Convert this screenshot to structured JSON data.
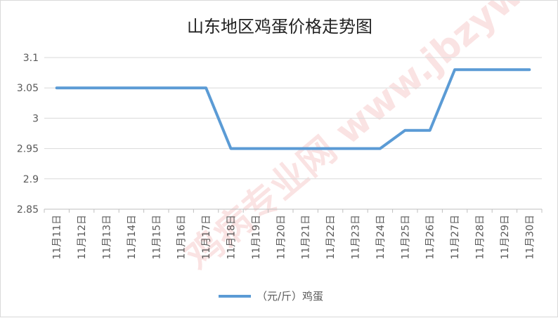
{
  "chart_data": {
    "type": "line",
    "title": "山东地区鸡蛋价格走势图",
    "xlabel": "",
    "ylabel": "",
    "categories": [
      "11月11日",
      "11月12日",
      "11月13日",
      "11月14日",
      "11月15日",
      "11月16日",
      "11月17日",
      "11月18日",
      "11月19日",
      "11月20日",
      "11月21日",
      "11月22日",
      "11月23日",
      "11月24日",
      "11月25日",
      "11月26日",
      "11月27日",
      "11月28日",
      "11月29日",
      "11月30日"
    ],
    "series": [
      {
        "name": "（元/斤）鸡蛋",
        "values": [
          3.05,
          3.05,
          3.05,
          3.05,
          3.05,
          3.05,
          3.05,
          2.95,
          2.95,
          2.95,
          2.95,
          2.95,
          2.95,
          2.95,
          2.98,
          2.98,
          3.08,
          3.08,
          3.08,
          3.08
        ]
      }
    ],
    "ylim": [
      2.85,
      3.1
    ],
    "yticks": [
      "3.1",
      "3.05",
      "3",
      "2.95",
      "2.9",
      "2.85"
    ],
    "grid": true,
    "legend": "bottom",
    "line_color": "#5b9bd5",
    "watermark": "鸡病专业网 www.jbzyw.com"
  }
}
